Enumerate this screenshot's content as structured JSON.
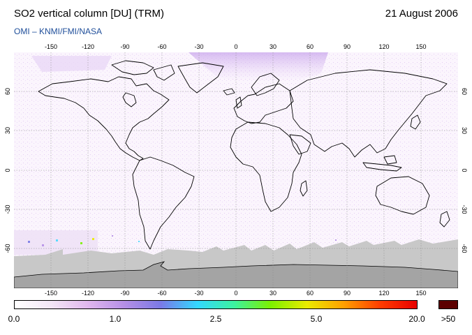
{
  "header": {
    "title": "SO2 vertical column [DU] (TRM)",
    "date": "21 August 2006",
    "subtitle": "OMI  –  KNMI/FMI/NASA"
  },
  "axes": {
    "longitude_ticks": [
      "-150",
      "-120",
      "-90",
      "-60",
      "-30",
      "0",
      "30",
      "60",
      "90",
      "120",
      "150"
    ],
    "latitude_ticks": [
      "60",
      "30",
      "0",
      "-30",
      "-60"
    ]
  },
  "colorbar": {
    "labels": [
      "0.0",
      "1.0",
      "2.5",
      "5.0",
      "20.0"
    ],
    "overflow_label": ">50",
    "colors": [
      "#ffffff",
      "#f3e6f6",
      "#e0b7ee",
      "#b58fe6",
      "#7a7ae6",
      "#33d8ff",
      "#3cf2a0",
      "#7cf000",
      "#eaea00",
      "#ffa000",
      "#ff3c00",
      "#e80000"
    ],
    "overflow_color": "#5c0000"
  },
  "map": {
    "land_outline_color": "#000000",
    "background_color": "#f8f2fb",
    "no_data_color": "#c8c8c8",
    "high_so2_color": "#b58fe6",
    "grid": true
  }
}
